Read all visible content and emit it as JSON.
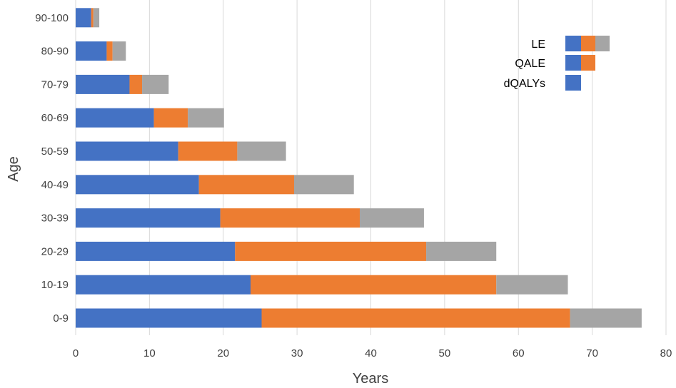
{
  "chart_data": {
    "type": "bar",
    "orientation": "horizontal",
    "stacked": true,
    "xlabel": "Years",
    "ylabel": "Age",
    "xlim": [
      0,
      80
    ],
    "x_ticks": [
      0,
      10,
      20,
      30,
      40,
      50,
      60,
      70,
      80
    ],
    "categories": [
      "0-9",
      "10-19",
      "20-29",
      "30-39",
      "40-49",
      "50-59",
      "60-69",
      "70-79",
      "80-90",
      "90-100"
    ],
    "series": [
      {
        "name": "",
        "color": "#4472c4",
        "values": [
          25.2,
          23.7,
          21.6,
          19.6,
          16.7,
          13.9,
          10.6,
          7.3,
          4.2,
          2.1
        ]
      },
      {
        "name": "",
        "color": "#ed7d31",
        "values": [
          41.8,
          33.3,
          25.9,
          18.9,
          12.9,
          8.0,
          4.6,
          1.7,
          0.8,
          0.3
        ]
      },
      {
        "name": "",
        "color": "#a5a5a5",
        "values": [
          9.7,
          9.7,
          9.5,
          8.7,
          8.1,
          6.6,
          4.9,
          3.6,
          1.8,
          0.8
        ]
      }
    ],
    "legend": {
      "position": "top-right",
      "entries": [
        {
          "label": "LE",
          "swatch_colors": [
            "#4472c4",
            "#ed7d31",
            "#a5a5a5"
          ]
        },
        {
          "label": "QALE",
          "swatch_colors": [
            "#4472c4",
            "#ed7d31"
          ]
        },
        {
          "label": "dQALYs",
          "swatch_colors": [
            "#4472c4"
          ]
        }
      ]
    },
    "grid": true
  }
}
